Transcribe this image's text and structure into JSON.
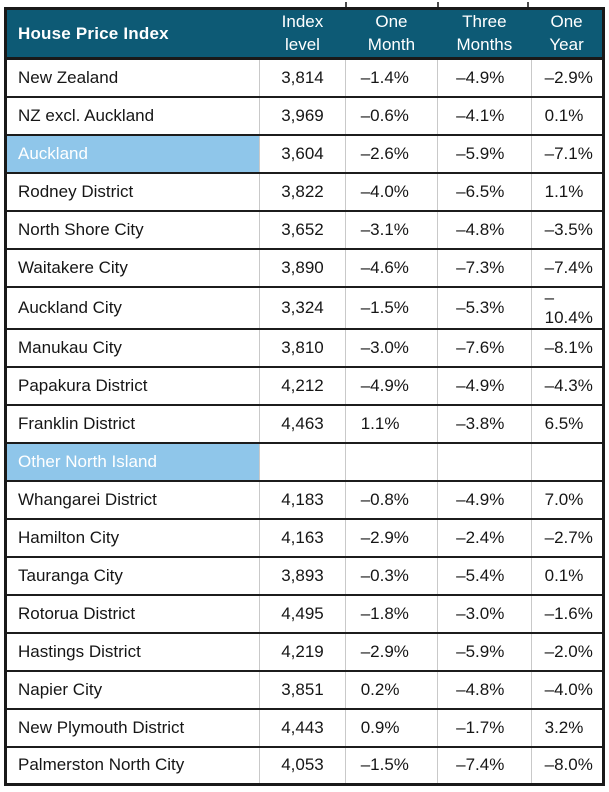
{
  "colors": {
    "header_bg": "#0d5a75",
    "header_text": "#ffffff",
    "section_bg": "#8fc6ea",
    "section_text": "#ffffff",
    "body_text": "#161616",
    "row_border": "#1c1c1c",
    "grid_line": "#c9c9c9",
    "outer_border": "#191919"
  },
  "table": {
    "columns": [
      {
        "label": "House Price Index"
      },
      {
        "label": "Index\nlevel"
      },
      {
        "label": "One\nMonth"
      },
      {
        "label": "Three\nMonths"
      },
      {
        "label": "One\nYear"
      }
    ],
    "rows": [
      {
        "label": "New Zealand",
        "type": "data",
        "values": [
          "3,814",
          "–1.4%",
          "–4.9%",
          "–2.9%"
        ]
      },
      {
        "label": "NZ excl. Auckland",
        "type": "data",
        "values": [
          "3,969",
          "–0.6%",
          "–4.1%",
          "0.1%"
        ]
      },
      {
        "label": "Auckland",
        "type": "section",
        "values": [
          "3,604",
          "–2.6%",
          "–5.9%",
          "–7.1%"
        ]
      },
      {
        "label": "Rodney District",
        "type": "data",
        "values": [
          "3,822",
          "–4.0%",
          "–6.5%",
          "1.1%"
        ]
      },
      {
        "label": "North Shore City",
        "type": "data",
        "values": [
          "3,652",
          "–3.1%",
          "–4.8%",
          "–3.5%"
        ]
      },
      {
        "label": "Waitakere City",
        "type": "data",
        "values": [
          "3,890",
          "–4.6%",
          "–7.3%",
          "–7.4%"
        ]
      },
      {
        "label": "Auckland City",
        "type": "data",
        "values": [
          "3,324",
          "–1.5%",
          "–5.3%",
          "–10.4%"
        ]
      },
      {
        "label": "Manukau City",
        "type": "data",
        "values": [
          "3,810",
          "–3.0%",
          "–7.6%",
          "–8.1%"
        ]
      },
      {
        "label": "Papakura District",
        "type": "data",
        "values": [
          "4,212",
          "–4.9%",
          "–4.9%",
          "–4.3%"
        ]
      },
      {
        "label": "Franklin District",
        "type": "data",
        "values": [
          "4,463",
          "1.1%",
          "–3.8%",
          "6.5%"
        ]
      },
      {
        "label": "Other North Island",
        "type": "section",
        "values": [
          "",
          "",
          "",
          ""
        ]
      },
      {
        "label": "Whangarei District",
        "type": "data",
        "values": [
          "4,183",
          "–0.8%",
          "–4.9%",
          "7.0%"
        ]
      },
      {
        "label": "Hamilton City",
        "type": "data",
        "values": [
          "4,163",
          "–2.9%",
          "–2.4%",
          "–2.7%"
        ]
      },
      {
        "label": "Tauranga City",
        "type": "data",
        "values": [
          "3,893",
          "–0.3%",
          "–5.4%",
          "0.1%"
        ]
      },
      {
        "label": "Rotorua District",
        "type": "data",
        "values": [
          "4,495",
          "–1.8%",
          "–3.0%",
          "–1.6%"
        ]
      },
      {
        "label": "Hastings District",
        "type": "data",
        "values": [
          "4,219",
          "–2.9%",
          "–5.9%",
          "–2.0%"
        ]
      },
      {
        "label": "Napier City",
        "type": "data",
        "values": [
          "3,851",
          "0.2%",
          "–4.8%",
          "–4.0%"
        ]
      },
      {
        "label": "New Plymouth District",
        "type": "data",
        "values": [
          "4,443",
          "0.9%",
          "–1.7%",
          "3.2%"
        ]
      },
      {
        "label": "Palmerston North City",
        "type": "data",
        "values": [
          "4,053",
          "–1.5%",
          "–7.4%",
          "–8.0%"
        ]
      }
    ]
  },
  "chart_data": {
    "type": "table",
    "title": "House Price Index",
    "columns": [
      "House Price Index",
      "Index level",
      "One Month",
      "Three Months",
      "One Year"
    ],
    "rows": [
      {
        "name": "New Zealand",
        "section_header": false,
        "index_level": 3814,
        "one_month_pct": -1.4,
        "three_months_pct": -4.9,
        "one_year_pct": -2.9
      },
      {
        "name": "NZ excl. Auckland",
        "section_header": false,
        "index_level": 3969,
        "one_month_pct": -0.6,
        "three_months_pct": -4.1,
        "one_year_pct": 0.1
      },
      {
        "name": "Auckland",
        "section_header": true,
        "index_level": 3604,
        "one_month_pct": -2.6,
        "three_months_pct": -5.9,
        "one_year_pct": -7.1
      },
      {
        "name": "Rodney District",
        "section_header": false,
        "index_level": 3822,
        "one_month_pct": -4.0,
        "three_months_pct": -6.5,
        "one_year_pct": 1.1
      },
      {
        "name": "North Shore City",
        "section_header": false,
        "index_level": 3652,
        "one_month_pct": -3.1,
        "three_months_pct": -4.8,
        "one_year_pct": -3.5
      },
      {
        "name": "Waitakere City",
        "section_header": false,
        "index_level": 3890,
        "one_month_pct": -4.6,
        "three_months_pct": -7.3,
        "one_year_pct": -7.4
      },
      {
        "name": "Auckland City",
        "section_header": false,
        "index_level": 3324,
        "one_month_pct": -1.5,
        "three_months_pct": -5.3,
        "one_year_pct": -10.4
      },
      {
        "name": "Manukau City",
        "section_header": false,
        "index_level": 3810,
        "one_month_pct": -3.0,
        "three_months_pct": -7.6,
        "one_year_pct": -8.1
      },
      {
        "name": "Papakura District",
        "section_header": false,
        "index_level": 4212,
        "one_month_pct": -4.9,
        "three_months_pct": -4.9,
        "one_year_pct": -4.3
      },
      {
        "name": "Franklin District",
        "section_header": false,
        "index_level": 4463,
        "one_month_pct": 1.1,
        "three_months_pct": -3.8,
        "one_year_pct": 6.5
      },
      {
        "name": "Other North Island",
        "section_header": true,
        "index_level": null,
        "one_month_pct": null,
        "three_months_pct": null,
        "one_year_pct": null
      },
      {
        "name": "Whangarei District",
        "section_header": false,
        "index_level": 4183,
        "one_month_pct": -0.8,
        "three_months_pct": -4.9,
        "one_year_pct": 7.0
      },
      {
        "name": "Hamilton City",
        "section_header": false,
        "index_level": 4163,
        "one_month_pct": -2.9,
        "three_months_pct": -2.4,
        "one_year_pct": -2.7
      },
      {
        "name": "Tauranga City",
        "section_header": false,
        "index_level": 3893,
        "one_month_pct": -0.3,
        "three_months_pct": -5.4,
        "one_year_pct": 0.1
      },
      {
        "name": "Rotorua District",
        "section_header": false,
        "index_level": 4495,
        "one_month_pct": -1.8,
        "three_months_pct": -3.0,
        "one_year_pct": -1.6
      },
      {
        "name": "Hastings District",
        "section_header": false,
        "index_level": 4219,
        "one_month_pct": -2.9,
        "three_months_pct": -5.9,
        "one_year_pct": -2.0
      },
      {
        "name": "Napier City",
        "section_header": false,
        "index_level": 3851,
        "one_month_pct": 0.2,
        "three_months_pct": -4.8,
        "one_year_pct": -4.0
      },
      {
        "name": "New Plymouth District",
        "section_header": false,
        "index_level": 4443,
        "one_month_pct": 0.9,
        "three_months_pct": -1.7,
        "one_year_pct": 3.2
      },
      {
        "name": "Palmerston North City",
        "section_header": false,
        "index_level": 4053,
        "one_month_pct": -1.5,
        "three_months_pct": -7.4,
        "one_year_pct": -8.0
      }
    ]
  }
}
